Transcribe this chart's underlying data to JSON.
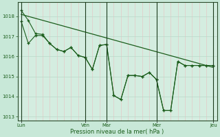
{
  "background_color": "#c8e8d8",
  "plot_bg": "#d4ede0",
  "grid_color_h": "#b8d8c8",
  "grid_color_v_red": "#e8c0c0",
  "line_color": "#1a5c1a",
  "xlabel": "Pression niveau de la mer( hPa )",
  "ylim": [
    1012.8,
    1018.7
  ],
  "yticks": [
    1013,
    1014,
    1015,
    1016,
    1017,
    1018
  ],
  "xtick_labels": [
    "Lun",
    "Ven",
    "Mar",
    "Mer",
    "Jeu"
  ],
  "xtick_positions": [
    0,
    9,
    12,
    19,
    27
  ],
  "day_vlines": [
    0,
    9,
    12,
    19,
    27
  ],
  "num_points": 28,
  "s1_x": [
    0,
    1,
    2,
    3,
    4,
    5,
    6,
    7,
    8,
    9,
    10,
    11,
    12,
    13,
    14,
    15,
    16,
    17,
    18,
    19,
    20,
    21,
    22,
    23,
    24,
    25,
    26,
    27
  ],
  "s1_y": [
    1017.75,
    1016.65,
    1017.05,
    1017.05,
    1016.65,
    1016.35,
    1016.25,
    1016.45,
    1016.05,
    1015.95,
    1015.35,
    1016.55,
    1016.6,
    1014.05,
    1013.85,
    1015.05,
    1015.05,
    1015.0,
    1015.2,
    1014.85,
    1013.3,
    1013.3,
    1015.75,
    1015.55,
    1015.55,
    1015.55,
    1015.55,
    1015.55
  ],
  "s2_x": [
    0,
    1,
    2,
    3,
    4,
    5,
    6,
    7,
    8,
    9,
    10,
    11,
    12,
    13,
    14,
    15,
    16,
    17,
    18,
    19,
    20,
    21,
    22,
    23,
    24,
    25,
    26,
    27
  ],
  "s2_y": [
    1018.3,
    1017.8,
    1017.15,
    1017.1,
    1016.65,
    1016.35,
    1016.25,
    1016.45,
    1016.05,
    1015.95,
    1015.35,
    1016.55,
    1016.6,
    1014.05,
    1013.85,
    1015.05,
    1015.05,
    1015.0,
    1015.2,
    1014.85,
    1013.3,
    1013.3,
    1015.75,
    1015.55,
    1015.55,
    1015.55,
    1015.55,
    1015.55
  ],
  "trend_x": [
    0,
    27
  ],
  "trend_y": [
    1018.1,
    1015.45
  ]
}
